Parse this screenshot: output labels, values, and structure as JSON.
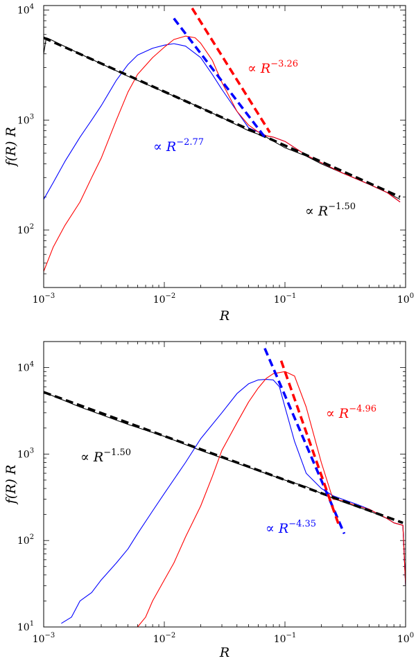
{
  "chart_data": [
    {
      "type": "line",
      "panel": "top",
      "xscale": "log",
      "yscale": "log",
      "xlim": [
        0.001,
        1
      ],
      "ylim": [
        30,
        11000
      ],
      "xlabel": "R",
      "ylabel": "f(R) R",
      "xticks": [
        {
          "value": 0.001,
          "base": "10",
          "exp": "−3"
        },
        {
          "value": 0.01,
          "base": "10",
          "exp": "−2"
        },
        {
          "value": 0.1,
          "base": "10",
          "exp": "−1"
        },
        {
          "value": 1,
          "base": "10",
          "exp": "0"
        }
      ],
      "yticks": [
        {
          "value": 100,
          "base": "10",
          "exp": "2"
        },
        {
          "value": 1000,
          "base": "10",
          "exp": "3"
        },
        {
          "value": 10000,
          "base": "10",
          "exp": "4"
        }
      ],
      "series": [
        {
          "name": "black",
          "color": "#000000",
          "x": [
            0.001,
            0.00105,
            0.0011,
            0.002,
            0.005,
            0.01,
            0.02,
            0.03,
            0.05,
            0.07,
            0.1,
            0.15,
            0.2,
            0.3,
            0.5,
            0.7,
            0.9
          ],
          "y": [
            4000,
            5600,
            5500,
            4000,
            2500,
            1800,
            1300,
            1050,
            800,
            700,
            560,
            470,
            400,
            330,
            260,
            220,
            190
          ]
        },
        {
          "name": "blue",
          "color": "#0000ff",
          "x": [
            0.001,
            0.0012,
            0.0015,
            0.002,
            0.0025,
            0.003,
            0.004,
            0.005,
            0.006,
            0.008,
            0.01,
            0.012,
            0.015,
            0.02,
            0.025,
            0.03,
            0.04,
            0.05,
            0.06,
            0.07,
            0.08,
            0.1,
            0.15,
            0.2,
            0.3,
            0.5,
            0.7,
            0.9
          ],
          "y": [
            190,
            270,
            420,
            700,
            1000,
            1350,
            2300,
            3200,
            3900,
            4500,
            4800,
            4950,
            4700,
            3700,
            2600,
            1900,
            1200,
            850,
            780,
            720,
            700,
            640,
            480,
            410,
            330,
            260,
            220,
            180
          ]
        },
        {
          "name": "red",
          "color": "#ff0000",
          "x": [
            0.001,
            0.0012,
            0.0015,
            0.002,
            0.0025,
            0.003,
            0.004,
            0.005,
            0.006,
            0.008,
            0.01,
            0.012,
            0.015,
            0.018,
            0.02,
            0.025,
            0.03,
            0.04,
            0.05,
            0.06,
            0.07,
            0.08,
            0.1,
            0.15,
            0.2,
            0.3,
            0.5,
            0.7,
            0.9
          ],
          "y": [
            42,
            70,
            110,
            180,
            300,
            450,
            1000,
            1800,
            2600,
            3700,
            4600,
            5400,
            5800,
            5600,
            5000,
            3500,
            2200,
            1200,
            900,
            780,
            720,
            700,
            640,
            480,
            410,
            330,
            260,
            220,
            180
          ]
        }
      ],
      "fits": [
        {
          "name": "black fit",
          "color": "#000000",
          "slope": -1.5,
          "x": [
            0.001,
            0.9
          ],
          "y": [
            5600,
            200
          ]
        },
        {
          "name": "blue fit",
          "color": "#0000ff",
          "slope": -2.77,
          "x": [
            0.012,
            0.068
          ],
          "y": [
            8400,
            700
          ]
        },
        {
          "name": "red fit",
          "color": "#ff0000",
          "slope": -3.26,
          "x": [
            0.017,
            0.075
          ],
          "y": [
            10400,
            770
          ]
        }
      ],
      "annotations": [
        {
          "color": "#ff0000",
          "prefix": "∝ ",
          "var": "R",
          "exp": "−3.26"
        },
        {
          "color": "#0000ff",
          "prefix": "∝ ",
          "var": "R",
          "exp": "−2.77"
        },
        {
          "color": "#000000",
          "prefix": "∝ ",
          "var": "R",
          "exp": "−1.50"
        }
      ]
    },
    {
      "type": "line",
      "panel": "bottom",
      "xscale": "log",
      "yscale": "log",
      "xlim": [
        0.001,
        1
      ],
      "ylim": [
        10,
        20000
      ],
      "xlabel": "R",
      "ylabel": "f(R) R",
      "xticks": [
        {
          "value": 0.001,
          "base": "10",
          "exp": "−3"
        },
        {
          "value": 0.01,
          "base": "10",
          "exp": "−2"
        },
        {
          "value": 0.1,
          "base": "10",
          "exp": "−1"
        },
        {
          "value": 1,
          "base": "10",
          "exp": "0"
        }
      ],
      "yticks": [
        {
          "value": 10,
          "base": "10",
          "exp": "1"
        },
        {
          "value": 100,
          "base": "10",
          "exp": "2"
        },
        {
          "value": 1000,
          "base": "10",
          "exp": "3"
        },
        {
          "value": 10000,
          "base": "10",
          "exp": "4"
        }
      ],
      "series": [
        {
          "name": "black",
          "color": "#000000",
          "x": [
            0.001,
            0.002,
            0.005,
            0.01,
            0.02,
            0.05,
            0.1,
            0.15,
            0.2,
            0.3,
            0.5,
            0.7,
            0.8,
            0.95,
            1.0
          ],
          "y": [
            5200,
            3500,
            2200,
            1600,
            1100,
            700,
            500,
            420,
            350,
            280,
            220,
            180,
            160,
            150,
            30
          ]
        },
        {
          "name": "blue",
          "color": "#0000ff",
          "x": [
            0.0014,
            0.0017,
            0.002,
            0.0025,
            0.003,
            0.004,
            0.005,
            0.006,
            0.008,
            0.01,
            0.015,
            0.02,
            0.03,
            0.04,
            0.05,
            0.06,
            0.07,
            0.08,
            0.09,
            0.1,
            0.12,
            0.15,
            0.2,
            0.25,
            0.3,
            0.4,
            0.5,
            0.7,
            0.8,
            0.95,
            1.0
          ],
          "y": [
            11,
            13,
            20,
            25,
            35,
            55,
            80,
            120,
            220,
            350,
            800,
            1500,
            3000,
            5000,
            6500,
            7200,
            7300,
            7200,
            6000,
            3500,
            1400,
            600,
            400,
            330,
            300,
            260,
            230,
            180,
            160,
            150,
            30
          ]
        },
        {
          "name": "red",
          "color": "#ff0000",
          "x": [
            0.006,
            0.007,
            0.008,
            0.01,
            0.012,
            0.015,
            0.02,
            0.025,
            0.03,
            0.04,
            0.05,
            0.06,
            0.07,
            0.08,
            0.1,
            0.12,
            0.15,
            0.2,
            0.25,
            0.3,
            0.4,
            0.5,
            0.7,
            0.8,
            0.95,
            1.0
          ],
          "y": [
            10,
            13,
            20,
            35,
            55,
            110,
            250,
            550,
            1100,
            2300,
            4000,
            5800,
            7500,
            8500,
            9000,
            8000,
            3500,
            800,
            300,
            290,
            250,
            230,
            180,
            160,
            150,
            30
          ]
        }
      ],
      "fits": [
        {
          "name": "black fit",
          "color": "#000000",
          "slope": -1.5,
          "x": [
            0.001,
            0.95
          ],
          "y": [
            5200,
            160
          ]
        },
        {
          "name": "blue fit",
          "color": "#0000ff",
          "slope": -4.35,
          "x": [
            0.068,
            0.31
          ],
          "y": [
            16700,
            120
          ]
        },
        {
          "name": "red fit",
          "color": "#ff0000",
          "slope": -4.96,
          "x": [
            0.093,
            0.28
          ],
          "y": [
            12000,
            150
          ]
        }
      ],
      "annotations": [
        {
          "color": "#ff0000",
          "prefix": "∝ ",
          "var": "R",
          "exp": "−4.96"
        },
        {
          "color": "#000000",
          "prefix": "∝ ",
          "var": "R",
          "exp": "−1.50"
        },
        {
          "color": "#0000ff",
          "prefix": "∝ ",
          "var": "R",
          "exp": "−4.35"
        }
      ]
    }
  ]
}
